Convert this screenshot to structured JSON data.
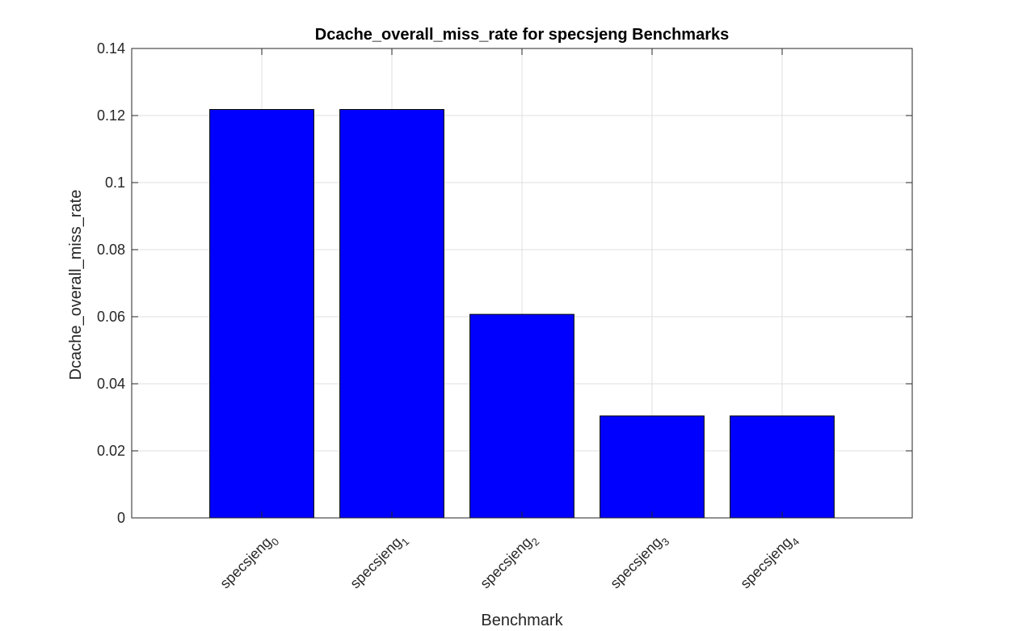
{
  "chart_data": {
    "type": "bar",
    "title": "Dcache_overall_miss_rate for specsjeng Benchmarks",
    "xlabel": "Benchmark",
    "ylabel": "Dcache_overall_miss_rate",
    "categories": [
      {
        "base": "specsjeng",
        "sub": "0"
      },
      {
        "base": "specsjeng",
        "sub": "1"
      },
      {
        "base": "specsjeng",
        "sub": "2"
      },
      {
        "base": "specsjeng",
        "sub": "3"
      },
      {
        "base": "specsjeng",
        "sub": "4"
      }
    ],
    "values": [
      0.1218,
      0.1218,
      0.0607,
      0.0304,
      0.0304
    ],
    "ylim": [
      0,
      0.14
    ],
    "yticks": [
      0,
      0.02,
      0.04,
      0.06,
      0.08,
      0.1,
      0.12,
      0.14
    ],
    "ytick_labels": [
      "0",
      "0.02",
      "0.04",
      "0.06",
      "0.08",
      "0.1",
      "0.12",
      "0.14"
    ],
    "grid": true,
    "bar_color": "#0000ff"
  }
}
